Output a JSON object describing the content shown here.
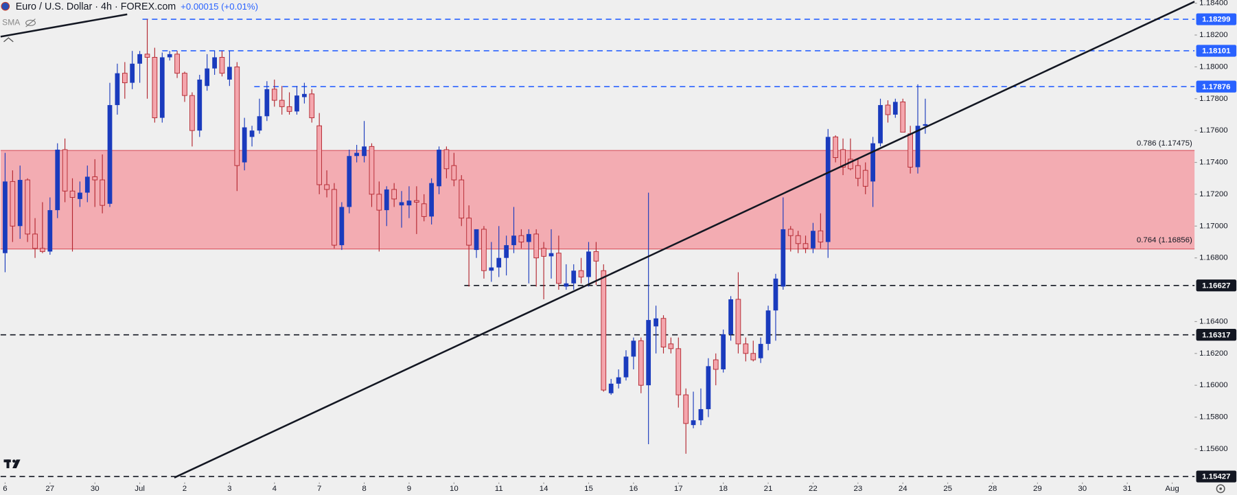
{
  "chart_data": {
    "type": "candlestick",
    "title": "Euro / U.S. Dollar · 4h · FOREX.com",
    "subtitle": "+0.00015 (+0.01%)",
    "indicator_label": "SMA",
    "x": [
      0,
      0.167,
      0.333,
      0.5,
      0.667,
      0.833,
      1,
      1.167,
      1.333,
      1.5,
      1.667,
      1.833,
      2,
      2.167,
      2.333,
      2.5,
      2.667,
      2.833,
      3,
      3.167,
      3.333,
      3.5,
      3.667,
      3.833,
      4,
      4.167,
      4.333,
      4.5,
      4.667,
      4.833,
      5,
      5.167,
      5.333,
      5.5,
      5.667,
      5.833,
      6,
      6.167,
      6.333,
      6.5,
      6.667,
      6.833,
      7,
      7.167,
      7.333,
      7.5,
      7.667,
      7.833,
      8,
      8.167,
      8.333,
      8.5,
      8.667,
      8.833,
      9,
      9.167,
      9.333,
      9.5,
      9.667,
      9.833,
      10,
      10.167,
      10.333,
      10.5,
      10.667,
      10.833,
      11,
      11.167,
      11.333,
      11.5,
      11.667,
      11.833,
      12,
      12.167,
      12.333,
      12.5,
      12.667,
      12.833,
      13,
      13.167,
      13.333,
      13.5,
      13.667,
      13.833,
      14,
      14.167,
      14.333,
      14.5,
      14.667,
      14.833,
      15,
      15.167,
      15.333,
      15.5,
      15.667,
      15.833,
      16,
      16.167,
      16.333,
      16.5,
      16.667,
      16.833,
      17,
      17.167,
      17.333,
      17.5,
      17.667,
      17.833,
      18,
      18.167,
      18.333,
      18.5,
      18.667,
      18.833,
      19,
      19.167,
      19.333,
      19.5,
      19.667,
      19.833,
      20,
      20.167,
      20.333,
      20.5
    ],
    "open": [
      1.1683,
      1.1728,
      1.17,
      1.1729,
      1.1695,
      1.1686,
      1.1684,
      1.171,
      1.1748,
      1.1722,
      1.1717,
      1.1721,
      1.1731,
      1.1729,
      1.1714,
      1.1776,
      1.1796,
      1.179,
      1.1802,
      1.1808,
      1.1806,
      1.1768,
      1.1806,
      1.1808,
      1.1796,
      1.1782,
      1.176,
      1.1788,
      1.1799,
      1.1806,
      1.1792,
      1.18,
      1.174,
      1.1756,
      1.176,
      1.1769,
      1.1786,
      1.1779,
      1.1775,
      1.1772,
      1.1781,
      1.1783,
      1.1763,
      1.1726,
      1.1723,
      1.1688,
      1.1712,
      1.1744,
      1.1744,
      1.175,
      1.172,
      1.171,
      1.1723,
      1.1713,
      1.1713,
      1.1716,
      1.1714,
      1.1706,
      1.1725,
      1.1748,
      1.1738,
      1.1729,
      1.1705,
      1.1685,
      1.1698,
      1.1672,
      1.1674,
      1.168,
      1.1688,
      1.1694,
      1.169,
      1.1695,
      1.1686,
      1.1681,
      1.1683,
      1.1662,
      1.1664,
      1.1672,
      1.1668,
      1.1684,
      1.1672,
      1.1595,
      1.1601,
      1.1605,
      1.1618,
      1.1628,
      1.16,
      1.1637,
      1.1642,
      1.1626,
      1.1623,
      1.1594,
      1.1575,
      1.1578,
      1.1585,
      1.1616,
      1.161,
      1.1632,
      1.1654,
      1.1626,
      1.162,
      1.1617,
      1.1626,
      1.1647,
      1.1662,
      1.1698,
      1.1694,
      1.1689,
      1.1686,
      1.1697,
      1.169,
      1.1756,
      1.1748,
      1.1742,
      1.1738,
      1.1735,
      1.1728,
      1.1752,
      1.1776,
      1.177,
      1.1778,
      1.1758,
      1.1737,
      1.1763
    ],
    "high": [
      1.1746,
      1.1735,
      1.1738,
      1.173,
      1.1705,
      1.1715,
      1.1718,
      1.1752,
      1.1755,
      1.173,
      1.1728,
      1.1738,
      1.1742,
      1.1745,
      1.179,
      1.1802,
      1.1803,
      1.181,
      1.181,
      1.183,
      1.1812,
      1.1809,
      1.181,
      1.181,
      1.1797,
      1.1784,
      1.1795,
      1.1808,
      1.181,
      1.181,
      1.181,
      1.1803,
      1.1768,
      1.1763,
      1.178,
      1.1791,
      1.1792,
      1.1788,
      1.1784,
      1.1788,
      1.179,
      1.1786,
      1.1771,
      1.1735,
      1.1727,
      1.1715,
      1.1748,
      1.1751,
      1.1766,
      1.1752,
      1.1728,
      1.1725,
      1.1727,
      1.1722,
      1.1725,
      1.1725,
      1.172,
      1.173,
      1.175,
      1.175,
      1.1746,
      1.1732,
      1.1713,
      1.1698,
      1.17,
      1.169,
      1.17,
      1.1694,
      1.1712,
      1.1698,
      1.1698,
      1.1698,
      1.169,
      1.1698,
      1.1694,
      1.1676,
      1.1676,
      1.168,
      1.169,
      1.169,
      1.1676,
      1.1604,
      1.161,
      1.1622,
      1.163,
      1.163,
      1.1721,
      1.165,
      1.1644,
      1.163,
      1.163,
      1.1598,
      1.1596,
      1.1598,
      1.1617,
      1.162,
      1.1635,
      1.1656,
      1.1671,
      1.163,
      1.1628,
      1.163,
      1.165,
      1.167,
      1.1718,
      1.17,
      1.1697,
      1.1694,
      1.1702,
      1.1708,
      1.1761,
      1.1757,
      1.1755,
      1.1755,
      1.1742,
      1.174,
      1.1756,
      1.178,
      1.1779,
      1.178,
      1.178,
      1.1763,
      1.1789,
      1.178
    ],
    "low": [
      1.1671,
      1.169,
      1.1692,
      1.169,
      1.168,
      1.1683,
      1.1682,
      1.1705,
      1.1715,
      1.1684,
      1.1712,
      1.1715,
      1.1712,
      1.1708,
      1.1712,
      1.177,
      1.178,
      1.1786,
      1.179,
      1.178,
      1.1765,
      1.1765,
      1.1804,
      1.1793,
      1.1778,
      1.175,
      1.1756,
      1.1785,
      1.1795,
      1.1794,
      1.1788,
      1.1722,
      1.1735,
      1.175,
      1.1758,
      1.1766,
      1.1775,
      1.177,
      1.177,
      1.177,
      1.1777,
      1.1765,
      1.172,
      1.1718,
      1.1686,
      1.1685,
      1.1708,
      1.174,
      1.174,
      1.1712,
      1.1684,
      1.17,
      1.1712,
      1.1699,
      1.1705,
      1.1695,
      1.1703,
      1.1701,
      1.172,
      1.173,
      1.1725,
      1.17,
      1.1662,
      1.168,
      1.1667,
      1.1665,
      1.1668,
      1.1669,
      1.1683,
      1.1686,
      1.1664,
      1.1662,
      1.1654,
      1.1667,
      1.166,
      1.166,
      1.166,
      1.1664,
      1.1662,
      1.1663,
      1.1596,
      1.1594,
      1.1598,
      1.1603,
      1.161,
      1.1595,
      1.1563,
      1.162,
      1.162,
      1.162,
      1.1586,
      1.1557,
      1.1573,
      1.1575,
      1.158,
      1.16,
      1.1608,
      1.1628,
      1.162,
      1.1615,
      1.1615,
      1.1614,
      1.1622,
      1.1628,
      1.166,
      1.1684,
      1.1683,
      1.1683,
      1.1683,
      1.1686,
      1.168,
      1.174,
      1.1732,
      1.1735,
      1.1725,
      1.172,
      1.1712,
      1.175,
      1.1765,
      1.1768,
      1.1759,
      1.1733,
      1.1733,
      1.1758
    ],
    "close": [
      1.1728,
      1.17,
      1.1729,
      1.1695,
      1.1686,
      1.1684,
      1.171,
      1.1748,
      1.1722,
      1.1718,
      1.1721,
      1.1731,
      1.1729,
      1.1713,
      1.1776,
      1.1796,
      1.179,
      1.1802,
      1.1808,
      1.1806,
      1.1768,
      1.1806,
      1.1808,
      1.1796,
      1.1782,
      1.176,
      1.1792,
      1.1799,
      1.1806,
      1.1796,
      1.18,
      1.1738,
      1.1762,
      1.176,
      1.1769,
      1.1786,
      1.1779,
      1.1775,
      1.1772,
      1.1782,
      1.1783,
      1.1768,
      1.1726,
      1.1723,
      1.1688,
      1.1712,
      1.1744,
      1.1746,
      1.175,
      1.172,
      1.171,
      1.1723,
      1.1717,
      1.1715,
      1.1716,
      1.1715,
      1.1706,
      1.1727,
      1.1748,
      1.1736,
      1.1729,
      1.1705,
      1.1688,
      1.1698,
      1.1672,
      1.1674,
      1.168,
      1.1688,
      1.1694,
      1.169,
      1.1695,
      1.168,
      1.1681,
      1.1683,
      1.1664,
      1.1664,
      1.1672,
      1.1668,
      1.1684,
      1.1678,
      1.1597,
      1.1601,
      1.1605,
      1.1618,
      1.1628,
      1.16,
      1.1641,
      1.1642,
      1.1624,
      1.1623,
      1.1594,
      1.1576,
      1.1578,
      1.1585,
      1.1612,
      1.161,
      1.1632,
      1.1654,
      1.1626,
      1.162,
      1.1616,
      1.1626,
      1.1647,
      1.1667,
      1.1698,
      1.1694,
      1.1689,
      1.1686,
      1.1697,
      1.169,
      1.1756,
      1.1743,
      1.1737,
      1.1736,
      1.173,
      1.1725,
      1.1752,
      1.1776,
      1.177,
      1.1778,
      1.1759,
      1.1737,
      1.1763,
      1.1764
    ],
    "up_color": "#1a3bbd",
    "down_color": "#f4a6ad",
    "down_edge_color": "#b3262f",
    "xlim": [
      -0.1,
      26.5
    ],
    "xticks": [
      {
        "value": 0,
        "label": "6"
      },
      {
        "value": 1,
        "label": "27"
      },
      {
        "value": 2,
        "label": "30"
      },
      {
        "value": 3,
        "label": "Jul"
      },
      {
        "value": 4,
        "label": "2"
      },
      {
        "value": 5,
        "label": "3"
      },
      {
        "value": 6,
        "label": "4"
      },
      {
        "value": 7,
        "label": "7"
      },
      {
        "value": 8,
        "label": "8"
      },
      {
        "value": 9,
        "label": "9"
      },
      {
        "value": 10,
        "label": "10"
      },
      {
        "value": 11,
        "label": "11"
      },
      {
        "value": 12,
        "label": "14"
      },
      {
        "value": 13,
        "label": "15"
      },
      {
        "value": 14,
        "label": "16"
      },
      {
        "value": 15,
        "label": "17"
      },
      {
        "value": 16,
        "label": "18"
      },
      {
        "value": 17,
        "label": "21"
      },
      {
        "value": 18,
        "label": "22"
      },
      {
        "value": 19,
        "label": "23"
      },
      {
        "value": 20,
        "label": "24"
      },
      {
        "value": 21,
        "label": "25"
      },
      {
        "value": 22,
        "label": "28"
      },
      {
        "value": 23,
        "label": "29"
      },
      {
        "value": 24,
        "label": "30"
      },
      {
        "value": 25,
        "label": "31"
      },
      {
        "value": 26,
        "label": "Aug"
      }
    ],
    "ylim": [
      1.1539,
      1.1842
    ],
    "yticks": [
      {
        "value": 1.184,
        "label": "1.18400"
      },
      {
        "value": 1.182,
        "label": "1.18200"
      },
      {
        "value": 1.18,
        "label": "1.18000"
      },
      {
        "value": 1.178,
        "label": "1.17800"
      },
      {
        "value": 1.176,
        "label": "1.17600"
      },
      {
        "value": 1.174,
        "label": "1.17400"
      },
      {
        "value": 1.172,
        "label": "1.17200"
      },
      {
        "value": 1.17,
        "label": "1.17000"
      },
      {
        "value": 1.168,
        "label": "1.16800"
      },
      {
        "value": 1.164,
        "label": "1.16400"
      },
      {
        "value": 1.162,
        "label": "1.16200"
      },
      {
        "value": 1.16,
        "label": "1.16000"
      },
      {
        "value": 1.158,
        "label": "1.15800"
      },
      {
        "value": 1.156,
        "label": "1.15600"
      }
    ],
    "grid": false,
    "levels": [
      {
        "value": 1.18299,
        "color": "#2962ff",
        "from": 3.06
      },
      {
        "value": 1.18101,
        "color": "#2962ff",
        "from": 3.5
      },
      {
        "value": 1.17876,
        "color": "#2962ff",
        "from": 5.55
      },
      {
        "value": 1.16627,
        "color": "#131722",
        "from": 10.23
      },
      {
        "value": 1.16317,
        "color": "#131722"
      },
      {
        "value": 1.15427,
        "color": "#131722"
      }
    ],
    "zone": {
      "color": "#f2a8ae",
      "edge_color": "#d9545f",
      "upper": {
        "value": 1.17475,
        "label": "0.786 (1.17475)"
      },
      "lower": {
        "value": 1.16856,
        "label": "0.764 (1.16856)"
      }
    },
    "trendlines": [
      {
        "x": [
          -0.1,
          2.72
        ],
        "y": [
          1.1819,
          1.1833
        ]
      },
      {
        "x": [
          3.77,
          26.5
        ],
        "y": [
          1.1542,
          1.1841
        ]
      }
    ]
  }
}
